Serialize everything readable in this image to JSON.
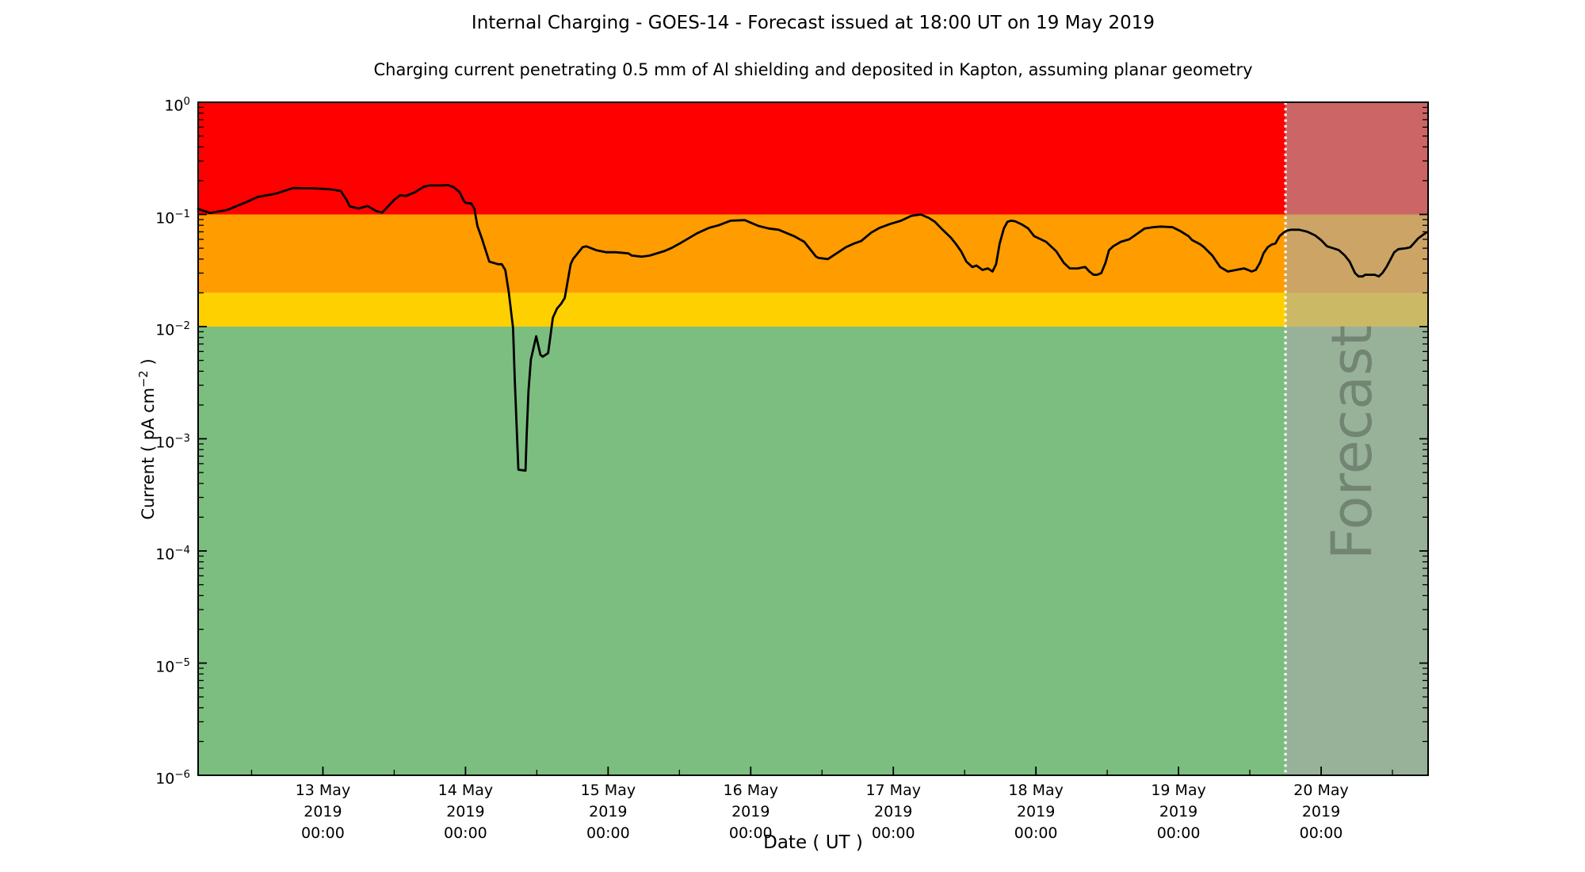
{
  "figure": {
    "title": "Internal Charging - GOES-14 - Forecast issued at 18:00 UT on 19 May 2019",
    "subtitle": "Charging current penetrating 0.5 mm of Al shielding and deposited in Kapton, assuming planar geometry"
  },
  "chart_data": {
    "type": "line",
    "title": "Internal Charging - GOES-14 - Forecast issued at 18:00 UT on 19 May 2019",
    "subtitle": "Charging current penetrating 0.5 mm of Al shielding and deposited in Kapton, assuming planar geometry",
    "x_axis": {
      "label": "Date ( UT )",
      "start": "12 May 2019 03:00 UT",
      "end": "20 May 2019 18:00 UT",
      "span_hours": 207,
      "major_ticks": [
        {
          "hour": 21,
          "lines": [
            "13 May",
            "2019",
            "00:00"
          ]
        },
        {
          "hour": 45,
          "lines": [
            "14 May",
            "2019",
            "00:00"
          ]
        },
        {
          "hour": 69,
          "lines": [
            "15 May",
            "2019",
            "00:00"
          ]
        },
        {
          "hour": 93,
          "lines": [
            "16 May",
            "2019",
            "00:00"
          ]
        },
        {
          "hour": 117,
          "lines": [
            "17 May",
            "2019",
            "00:00"
          ]
        },
        {
          "hour": 141,
          "lines": [
            "18 May",
            "2019",
            "00:00"
          ]
        },
        {
          "hour": 165,
          "lines": [
            "19 May",
            "2019",
            "00:00"
          ]
        },
        {
          "hour": 189,
          "lines": [
            "20 May",
            "2019",
            "00:00"
          ]
        }
      ],
      "minor_tick_hours": [
        9,
        33,
        57,
        81,
        105,
        129,
        153,
        177,
        201
      ]
    },
    "y_axis": {
      "label_prefix": "Current ( pA cm",
      "label_sup": "−2",
      "label_suffix": " )",
      "scale": "log",
      "min": 1e-06,
      "max": 1,
      "tick_exponents": [
        "0",
        "−1",
        "−2",
        "−3",
        "−4",
        "−5",
        "−6"
      ]
    },
    "grid": "off",
    "legend": "none",
    "bands": [
      {
        "name": "red-alert",
        "from": 0.1,
        "to": 1.0,
        "color": "#ff0000"
      },
      {
        "name": "orange-alert",
        "from": 0.02,
        "to": 0.1,
        "color": "#fe9c00"
      },
      {
        "name": "yellow-alert",
        "from": 0.01,
        "to": 0.02,
        "color": "#ffd000"
      },
      {
        "name": "green-quiet",
        "from": 1e-06,
        "to": 0.01,
        "color": "#7cbe80"
      }
    ],
    "forecast": {
      "label": "Forecast",
      "start_hour": 183,
      "overlay_color": "rgba(170,170,170,0.60)",
      "divider_color": "#ffffff",
      "label_color": "rgba(0,0,0,0.25)"
    },
    "series": {
      "name": "charging-current",
      "color": "#000000",
      "points": [
        [
          0,
          0.112
        ],
        [
          2,
          0.103
        ],
        [
          5,
          0.11
        ],
        [
          8,
          0.128
        ],
        [
          10,
          0.143
        ],
        [
          13,
          0.153
        ],
        [
          16,
          0.172
        ],
        [
          19,
          0.171
        ],
        [
          22,
          0.168
        ],
        [
          24,
          0.162
        ],
        [
          25,
          0.135
        ],
        [
          25.5,
          0.118
        ],
        [
          27,
          0.113
        ],
        [
          28.5,
          0.119
        ],
        [
          30,
          0.107
        ],
        [
          31,
          0.104
        ],
        [
          33,
          0.135
        ],
        [
          34,
          0.148
        ],
        [
          35,
          0.146
        ],
        [
          36.5,
          0.158
        ],
        [
          38,
          0.177
        ],
        [
          39,
          0.181
        ],
        [
          41,
          0.181
        ],
        [
          42,
          0.183
        ],
        [
          43,
          0.175
        ],
        [
          44,
          0.158
        ],
        [
          44.7,
          0.133
        ],
        [
          45,
          0.127
        ],
        [
          46,
          0.125
        ],
        [
          46.5,
          0.112
        ],
        [
          47,
          0.079
        ],
        [
          47.8,
          0.06
        ],
        [
          49,
          0.038
        ],
        [
          50.5,
          0.036
        ],
        [
          51.1,
          0.036
        ],
        [
          51.7,
          0.032
        ],
        [
          52.3,
          0.02
        ],
        [
          53,
          0.0097
        ],
        [
          53.3,
          0.0033
        ],
        [
          53.9,
          0.00053
        ],
        [
          55.1,
          0.00052
        ],
        [
          55.3,
          0.0011
        ],
        [
          55.6,
          0.0027
        ],
        [
          56,
          0.0051
        ],
        [
          56.9,
          0.0082
        ],
        [
          57.6,
          0.0056
        ],
        [
          58,
          0.0054
        ],
        [
          58.9,
          0.0058
        ],
        [
          59.3,
          0.0083
        ],
        [
          59.7,
          0.012
        ],
        [
          60.4,
          0.0145
        ],
        [
          61.1,
          0.016
        ],
        [
          61.7,
          0.018
        ],
        [
          62.7,
          0.036
        ],
        [
          63.1,
          0.04
        ],
        [
          64.7,
          0.051
        ],
        [
          65.3,
          0.052
        ],
        [
          67,
          0.048
        ],
        [
          68.7,
          0.046
        ],
        [
          70.3,
          0.046
        ],
        [
          72.4,
          0.045
        ],
        [
          73,
          0.043
        ],
        [
          74.7,
          0.042
        ],
        [
          76,
          0.043
        ],
        [
          78.4,
          0.047
        ],
        [
          79.6,
          0.05
        ],
        [
          81.3,
          0.056
        ],
        [
          84,
          0.068
        ],
        [
          86,
          0.076
        ],
        [
          87.6,
          0.08
        ],
        [
          89.6,
          0.088
        ],
        [
          92,
          0.089
        ],
        [
          94.3,
          0.079
        ],
        [
          96,
          0.075
        ],
        [
          97.7,
          0.073
        ],
        [
          100.3,
          0.064
        ],
        [
          102,
          0.057
        ],
        [
          104,
          0.042
        ],
        [
          104.4,
          0.041
        ],
        [
          106,
          0.04
        ],
        [
          108,
          0.047
        ],
        [
          109,
          0.051
        ],
        [
          110.4,
          0.055
        ],
        [
          111.6,
          0.058
        ],
        [
          113.3,
          0.069
        ],
        [
          114.7,
          0.076
        ],
        [
          116.4,
          0.082
        ],
        [
          118.3,
          0.088
        ],
        [
          120,
          0.097
        ],
        [
          121.6,
          0.1
        ],
        [
          123,
          0.093
        ],
        [
          124,
          0.086
        ],
        [
          125.3,
          0.073
        ],
        [
          126.7,
          0.062
        ],
        [
          127.6,
          0.054
        ],
        [
          128.4,
          0.047
        ],
        [
          129.3,
          0.038
        ],
        [
          130.3,
          0.034
        ],
        [
          131,
          0.035
        ],
        [
          132,
          0.032
        ],
        [
          132.9,
          0.033
        ],
        [
          133.7,
          0.031
        ],
        [
          134.3,
          0.036
        ],
        [
          134.9,
          0.055
        ],
        [
          135.6,
          0.075
        ],
        [
          136.2,
          0.086
        ],
        [
          136.8,
          0.088
        ],
        [
          137.5,
          0.087
        ],
        [
          138.7,
          0.081
        ],
        [
          139.7,
          0.075
        ],
        [
          140.7,
          0.064
        ],
        [
          142.7,
          0.057
        ],
        [
          144.4,
          0.047
        ],
        [
          145.7,
          0.037
        ],
        [
          146.7,
          0.033
        ],
        [
          148,
          0.033
        ],
        [
          149.3,
          0.034
        ],
        [
          150,
          0.031
        ],
        [
          150.7,
          0.029
        ],
        [
          151.3,
          0.029
        ],
        [
          152,
          0.03
        ],
        [
          152.7,
          0.037
        ],
        [
          153.3,
          0.048
        ],
        [
          154,
          0.052
        ],
        [
          155.3,
          0.057
        ],
        [
          156.7,
          0.06
        ],
        [
          158,
          0.067
        ],
        [
          159.3,
          0.075
        ],
        [
          160.7,
          0.077
        ],
        [
          162,
          0.078
        ],
        [
          164,
          0.077
        ],
        [
          165.3,
          0.071
        ],
        [
          166.7,
          0.064
        ],
        [
          167.3,
          0.059
        ],
        [
          168.7,
          0.054
        ],
        [
          169.3,
          0.051
        ],
        [
          170.7,
          0.043
        ],
        [
          172,
          0.034
        ],
        [
          173.3,
          0.031
        ],
        [
          174.7,
          0.032
        ],
        [
          176,
          0.033
        ],
        [
          176.7,
          0.032
        ],
        [
          177.3,
          0.031
        ],
        [
          178,
          0.032
        ],
        [
          178.7,
          0.037
        ],
        [
          179.3,
          0.045
        ],
        [
          180,
          0.051
        ],
        [
          180.7,
          0.054
        ],
        [
          181.3,
          0.055
        ],
        [
          182,
          0.064
        ],
        [
          182.7,
          0.069
        ],
        [
          183.3,
          0.072
        ],
        [
          184,
          0.073
        ],
        [
          185.3,
          0.073
        ],
        [
          186.7,
          0.07
        ],
        [
          188,
          0.065
        ],
        [
          189,
          0.059
        ],
        [
          190,
          0.052
        ],
        [
          191,
          0.05
        ],
        [
          192,
          0.048
        ],
        [
          193,
          0.043
        ],
        [
          193.8,
          0.038
        ],
        [
          194.7,
          0.03
        ],
        [
          195.3,
          0.028
        ],
        [
          196,
          0.028
        ],
        [
          196.4,
          0.029
        ],
        [
          197.3,
          0.029
        ],
        [
          198,
          0.029
        ],
        [
          198.7,
          0.028
        ],
        [
          199.3,
          0.03
        ],
        [
          200,
          0.034
        ],
        [
          200.7,
          0.04
        ],
        [
          201.3,
          0.046
        ],
        [
          202,
          0.049
        ],
        [
          203.3,
          0.05
        ],
        [
          204,
          0.051
        ],
        [
          204.7,
          0.056
        ],
        [
          205.3,
          0.061
        ],
        [
          206,
          0.065
        ],
        [
          206.7,
          0.069
        ]
      ]
    }
  }
}
